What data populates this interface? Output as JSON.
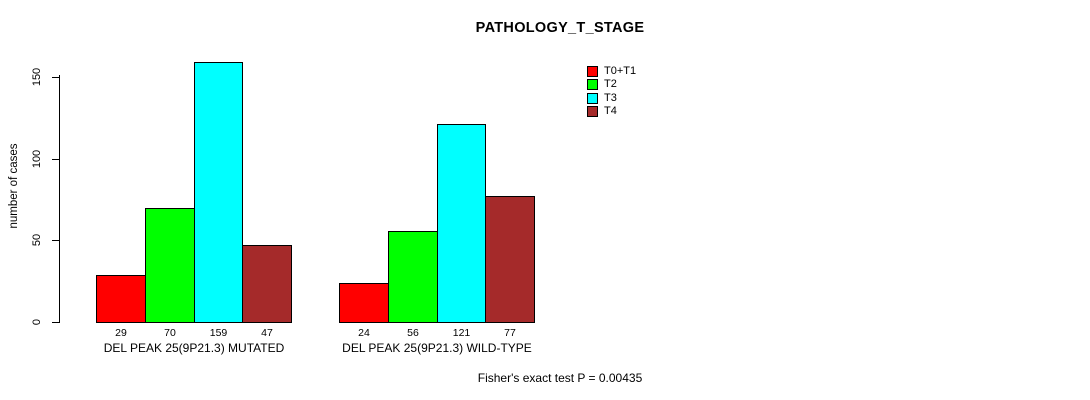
{
  "chart_data": {
    "type": "bar",
    "title": "PATHOLOGY_T_STAGE",
    "xlabel": "",
    "ylabel": "number of cases",
    "ylim": [
      0,
      150
    ],
    "yticks": [
      0,
      50,
      100,
      150
    ],
    "grid": false,
    "legend_position": "top-right",
    "groups": [
      "DEL PEAK 25(9P21.3) MUTATED",
      "DEL PEAK 25(9P21.3) WILD-TYPE"
    ],
    "series": [
      {
        "name": "T0+T1",
        "color": "#ff0000",
        "values": [
          29,
          24
        ]
      },
      {
        "name": "T2",
        "color": "#00ff00",
        "values": [
          70,
          56
        ]
      },
      {
        "name": "T3",
        "color": "#00ffff",
        "values": [
          159,
          121
        ]
      },
      {
        "name": "T4",
        "color": "#a52a2a",
        "values": [
          47,
          77
        ]
      }
    ],
    "bar_value_labels": [
      [
        29,
        70,
        159,
        47
      ],
      [
        24,
        56,
        121,
        77
      ]
    ],
    "annotation": "Fisher's exact test P = 0.00435"
  },
  "colors": {
    "axis": "#000000",
    "bar_border": "#000000",
    "background": "#ffffff"
  }
}
